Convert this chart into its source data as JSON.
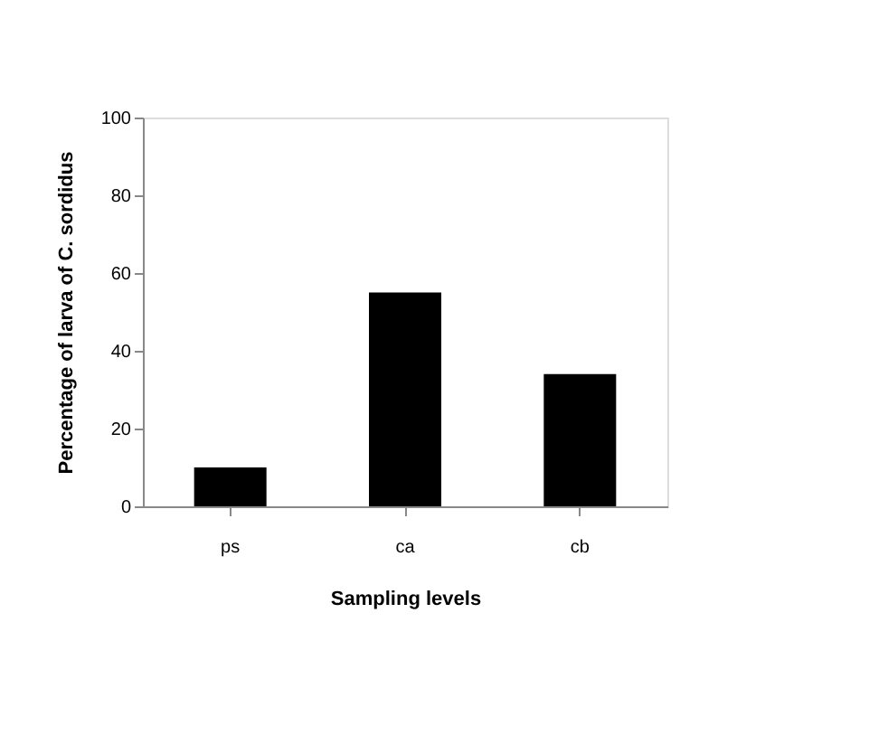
{
  "chart_data": {
    "type": "bar",
    "xlabel": "Sampling levels",
    "ylabel": "Percentage of larva of C. sordidus",
    "categories": [
      "ps",
      "ca",
      "cb"
    ],
    "values": [
      10,
      55,
      34
    ],
    "color": "#000000",
    "ylim": [
      0,
      100
    ],
    "yticks": [
      0,
      20,
      40,
      60,
      80,
      100
    ],
    "grid": false
  }
}
